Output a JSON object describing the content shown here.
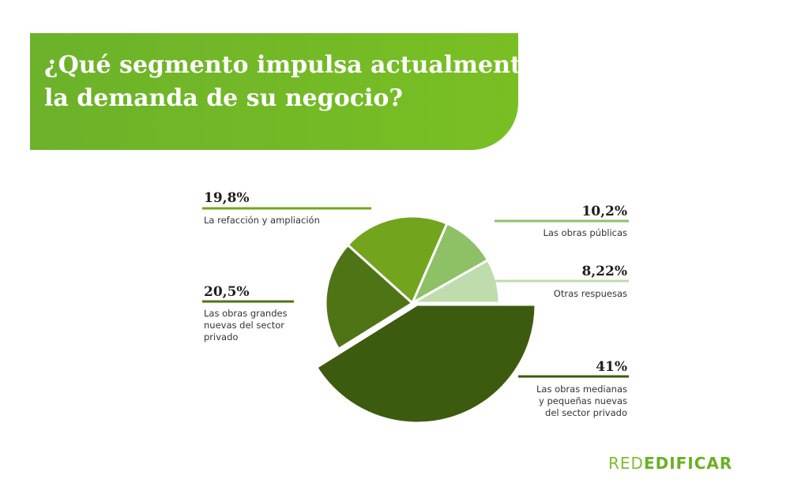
{
  "header": {
    "title_line1": "¿Qué segmento impulsa actualmente",
    "title_line2": "la demanda de su negocio?"
  },
  "chart_data": {
    "type": "pie",
    "title": "¿Qué segmento impulsa actualmente la demanda de su negocio?",
    "slices": [
      {
        "value": 41,
        "pct_label": "41%",
        "label": [
          "Las obras medianas",
          "y pequeñas nuevas",
          "del sector privado"
        ],
        "color": "#3d5b0e"
      },
      {
        "value": 20.5,
        "pct_label": "20,5%",
        "label": [
          "Las obras grandes",
          "nuevas  del sector",
          "privado"
        ],
        "color": "#4f7416"
      },
      {
        "value": 19.8,
        "pct_label": "19,8%",
        "label": [
          "La refacción y ampliación"
        ],
        "color": "#73a41d"
      },
      {
        "value": 10.2,
        "pct_label": "10,2%",
        "label": [
          "Las obras públicas"
        ],
        "color": "#8ec065"
      },
      {
        "value": 8.22,
        "pct_label": "8,22%",
        "label": [
          "Otras respuesas"
        ],
        "color": "#bfdcac"
      }
    ]
  },
  "logo": {
    "part1": "RED",
    "part2": "EDIFICAR"
  }
}
